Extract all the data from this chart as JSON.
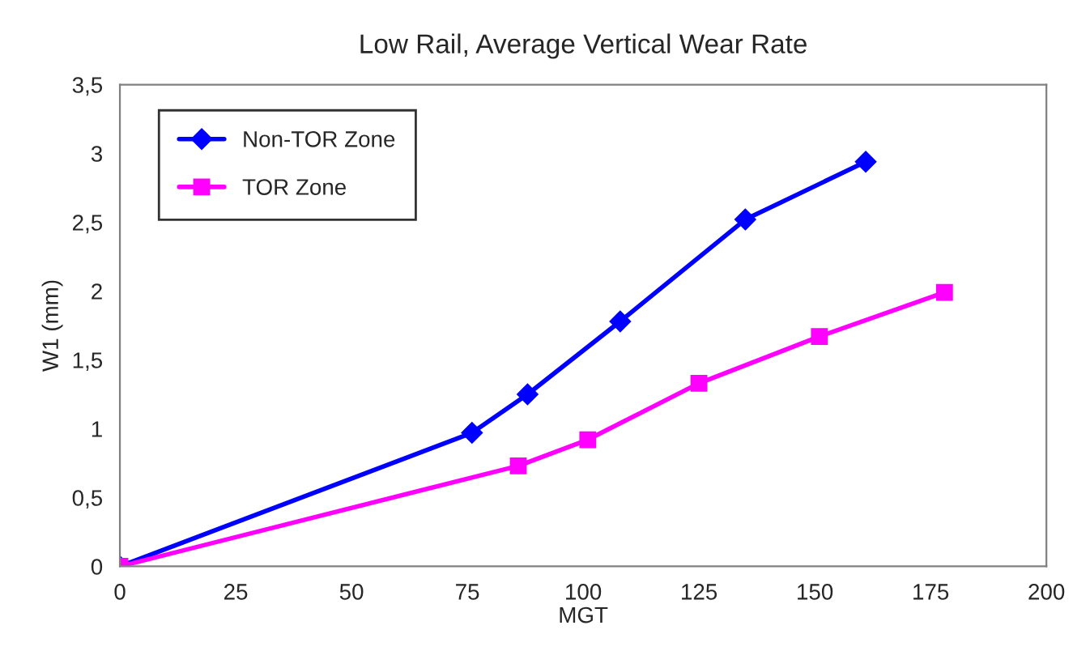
{
  "chart_data": {
    "type": "line",
    "title": "Low Rail, Average Vertical Wear Rate",
    "xlabel": "MGT",
    "ylabel": "W1 (mm)",
    "xlim": [
      0,
      200
    ],
    "xticks": [
      0,
      25,
      50,
      75,
      100,
      125,
      150,
      175,
      200
    ],
    "ylim": [
      0,
      3.5
    ],
    "yticks": [
      0,
      {
        "value": 0.5,
        "label": "0,5"
      },
      1,
      {
        "value": 1.5,
        "label": "1,5"
      },
      2,
      {
        "value": 2.5,
        "label": "2,5"
      },
      3,
      {
        "value": 3.5,
        "label": "3,5"
      }
    ],
    "grid": false,
    "legend": "top left",
    "series": [
      {
        "name": "Non-TOR Zone",
        "color": "#0000ff",
        "marker": "diamond",
        "x": [
          0,
          76,
          88,
          108,
          135,
          161
        ],
        "values": [
          0,
          0.97,
          1.25,
          1.78,
          2.52,
          2.94
        ]
      },
      {
        "name": "TOR Zone",
        "color": "#ff00ff",
        "marker": "square",
        "x": [
          0,
          86,
          101,
          125,
          151,
          178
        ],
        "values": [
          0,
          0.73,
          0.92,
          1.33,
          1.67,
          1.99
        ]
      }
    ]
  }
}
